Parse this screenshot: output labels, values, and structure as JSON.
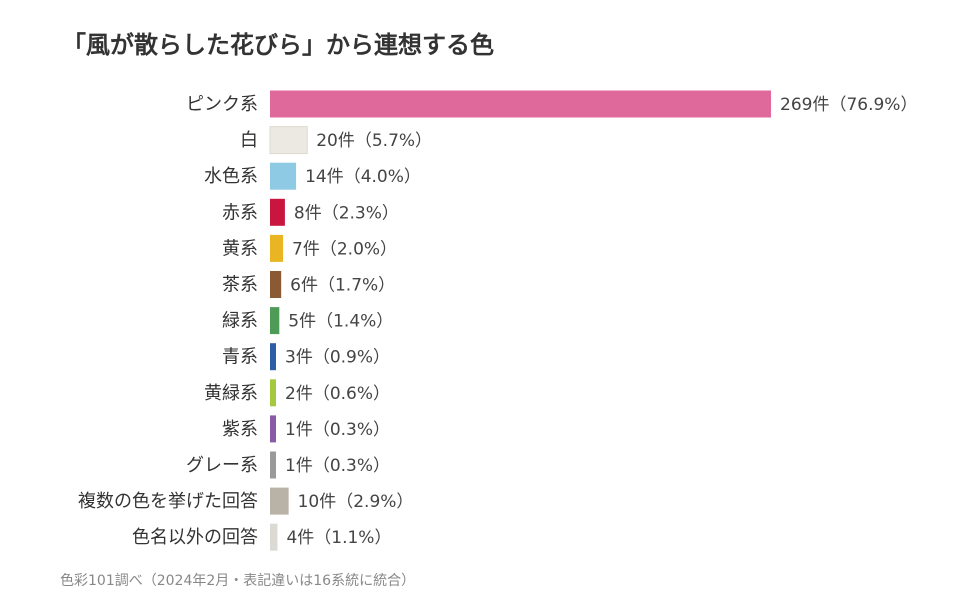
{
  "chart_data": {
    "type": "bar",
    "orientation": "horizontal",
    "title": "「風が散らした花びら」から連想する色",
    "source": "色彩101調べ（2024年2月・表記違いは16系統に統合）",
    "xlabel": "",
    "ylabel": "",
    "grid": false,
    "legend": "none",
    "categories": [
      "ピンク系",
      "白",
      "水色系",
      "赤系",
      "黄系",
      "茶系",
      "緑系",
      "青系",
      "黄緑系",
      "紫系",
      "グレー系",
      "複数の色を挙げた回答",
      "色名以外の回答"
    ],
    "values": [
      269,
      20,
      14,
      8,
      7,
      6,
      5,
      3,
      2,
      1,
      1,
      10,
      4
    ],
    "value_labels": [
      "269件（76.9%）",
      "20件（5.7%）",
      "14件（4.0%）",
      "8件（2.3%）",
      "7件（2.0%）",
      "6件（1.7%）",
      "5件（1.4%）",
      "3件（0.9%）",
      "2件（0.6%）",
      "1件（0.3%）",
      "1件（0.3%）",
      "10件（2.9%）",
      "4件（1.1%）"
    ],
    "colors": [
      "#e0699c",
      "#ece9e2",
      "#8ecae3",
      "#c8163f",
      "#e9b523",
      "#8a5a35",
      "#4e9a57",
      "#2e5ca6",
      "#a3c93e",
      "#8a5aa5",
      "#9a9a9a",
      "#b9b2a6",
      "#dcdad5"
    ]
  }
}
